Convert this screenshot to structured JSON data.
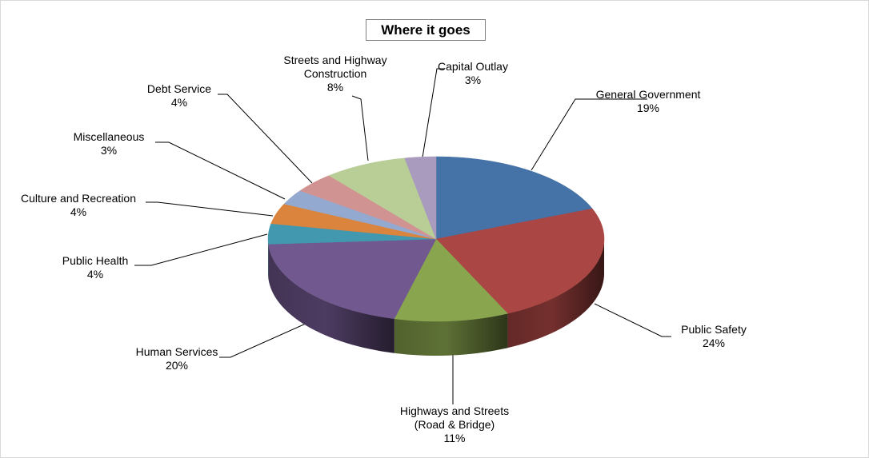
{
  "chart_data": {
    "type": "pie",
    "style": "3d",
    "title": "Where it goes",
    "legend": "none",
    "slices": [
      {
        "name": "General Government",
        "label_lines": [
          "General Government"
        ],
        "percent_label": "19%",
        "value": 19,
        "color": "#4572a7"
      },
      {
        "name": "Public Safety",
        "label_lines": [
          "Public Safety"
        ],
        "percent_label": "24%",
        "value": 24,
        "color": "#aa4643"
      },
      {
        "name": "Highways and Streets (Road & Bridge)",
        "label_lines": [
          "Highways and Streets",
          "(Road & Bridge)"
        ],
        "percent_label": "11%",
        "value": 11,
        "color": "#89a54e"
      },
      {
        "name": "Human Services",
        "label_lines": [
          "Human Services"
        ],
        "percent_label": "20%",
        "value": 20,
        "color": "#71588f"
      },
      {
        "name": "Public Health",
        "label_lines": [
          "Public Health"
        ],
        "percent_label": "4%",
        "value": 4,
        "color": "#4198af"
      },
      {
        "name": "Culture and Recreation",
        "label_lines": [
          "Culture and Recreation"
        ],
        "percent_label": "4%",
        "value": 4,
        "color": "#db843d"
      },
      {
        "name": "Miscellaneous",
        "label_lines": [
          "Miscellaneous"
        ],
        "percent_label": "3%",
        "value": 3,
        "color": "#93a9cf"
      },
      {
        "name": "Debt Service",
        "label_lines": [
          "Debt Service"
        ],
        "percent_label": "4%",
        "value": 4,
        "color": "#d19392"
      },
      {
        "name": "Streets and Highway Construction",
        "label_lines": [
          "Streets and Highway",
          "Construction"
        ],
        "percent_label": "8%",
        "value": 8,
        "color": "#b9cd96"
      },
      {
        "name": "Capital Outlay",
        "label_lines": [
          "Capital Outlay"
        ],
        "percent_label": "3%",
        "value": 3,
        "color": "#a99bbd"
      }
    ]
  }
}
